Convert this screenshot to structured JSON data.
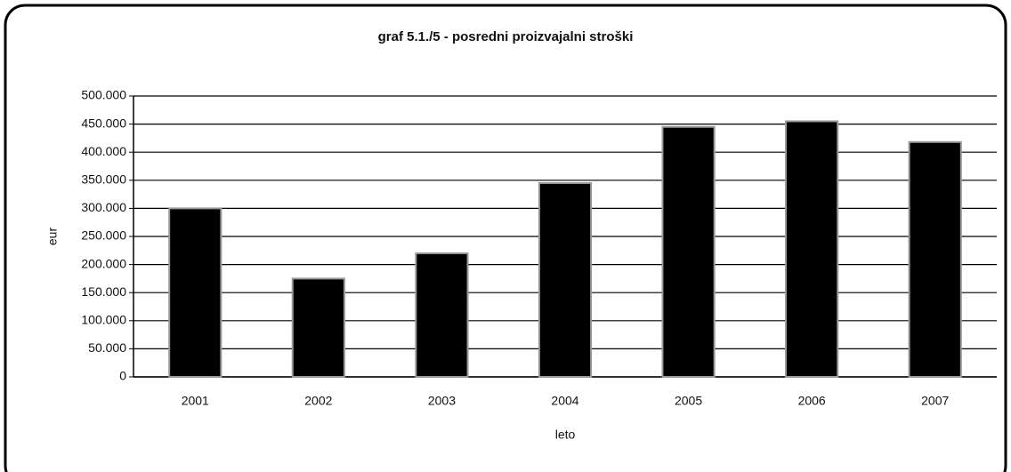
{
  "chart_data": {
    "type": "bar",
    "title": "graf 5.1./5 - posredni proizvajalni stroški",
    "x_label": "leto",
    "y_label": "eur",
    "categories": [
      "2001",
      "2002",
      "2003",
      "2004",
      "2005",
      "2006",
      "2007"
    ],
    "values": [
      300000,
      175000,
      220000,
      345000,
      445000,
      455000,
      418000
    ],
    "color": "#000000",
    "ylim": [
      0,
      500000
    ],
    "yticks": [
      0,
      {
        "value": 50000,
        "label": "50.000"
      },
      {
        "value": 100000,
        "label": "100.000"
      },
      {
        "value": 150000,
        "label": "150.000"
      },
      {
        "value": 200000,
        "label": "200.000"
      },
      {
        "value": 250000,
        "label": "250.000"
      },
      {
        "value": 300000,
        "label": "300.000"
      },
      {
        "value": 350000,
        "label": "350.000"
      },
      {
        "value": 400000,
        "label": "400.000"
      },
      {
        "value": 450000,
        "label": "450.000"
      },
      {
        "value": 500000,
        "label": "500.000"
      }
    ],
    "grid": true
  }
}
